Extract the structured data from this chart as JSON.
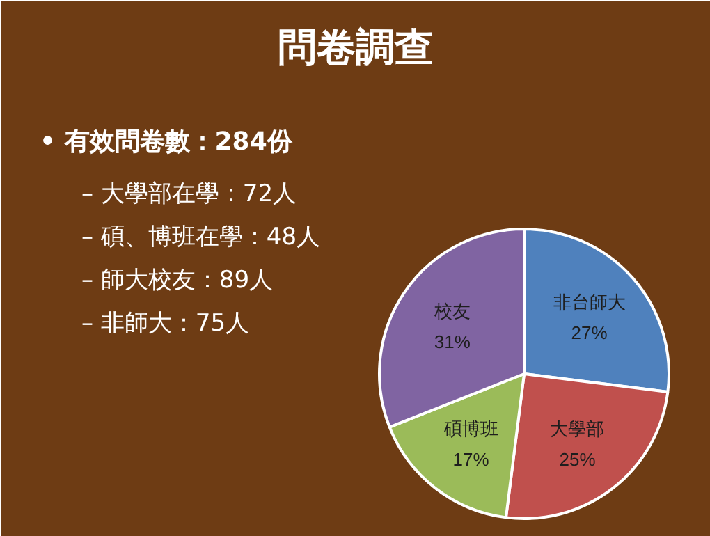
{
  "chart_data": {
    "type": "pie",
    "title": "問卷調查",
    "annotations": [
      "• 有效問卷數：284份",
      "– 大學部在學：72人",
      "– 碩、博班在學：48人",
      "– 師大校友：89人",
      "– 非師大：75人"
    ],
    "categories": [
      "非台師大",
      "大學部",
      "碩博班",
      "校友"
    ],
    "values": [
      27,
      25,
      17,
      31
    ],
    "colors": [
      "#4f81bd",
      "#c0504d",
      "#9bbb59",
      "#8064a2"
    ],
    "value_labels": [
      "27%",
      "25%",
      "17%",
      "31%"
    ]
  }
}
